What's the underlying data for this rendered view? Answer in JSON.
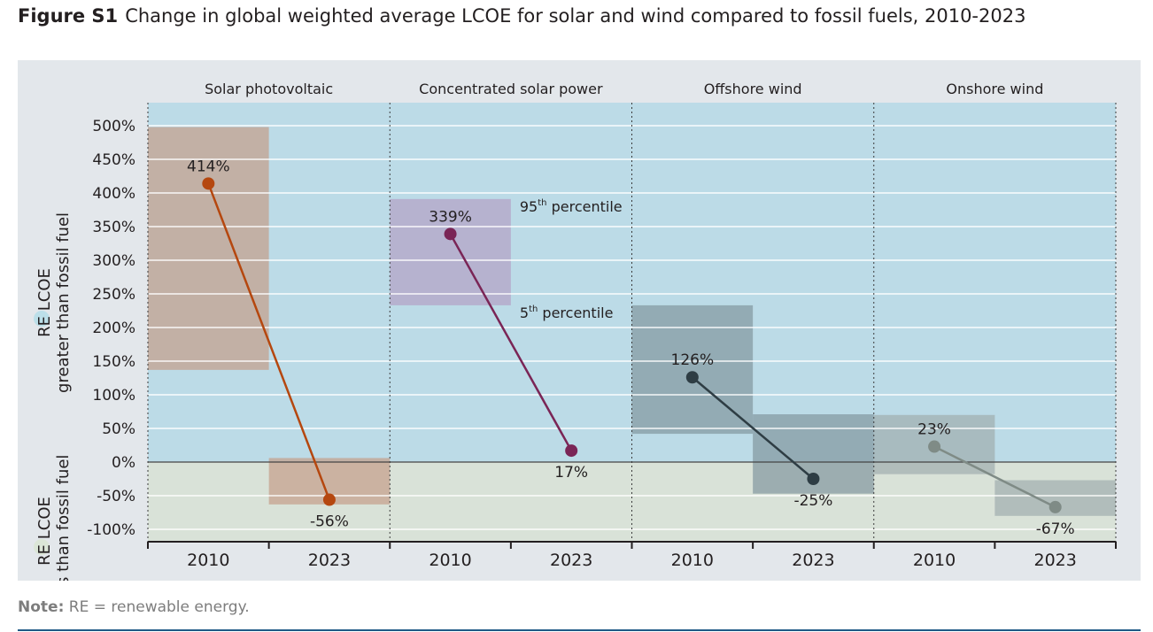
{
  "figure": {
    "label": "Figure S1",
    "title": "Change in global weighted average LCOE for solar and wind compared to fossil fuels, 2010-2023"
  },
  "note": {
    "label": "Note:",
    "text": "RE = renewable energy."
  },
  "colors": {
    "above_zone": "#bcdbe7",
    "below_zone": "#d9e2d8",
    "panel_bg": "#e3e7eb",
    "above_legend_dot": "#bcdfe9",
    "below_legend_dot": "#dbe6d7"
  },
  "chart_data": {
    "type": "line",
    "ylim": [
      -120,
      500
    ],
    "yticks": [
      500,
      450,
      400,
      350,
      300,
      250,
      200,
      150,
      100,
      50,
      0,
      -50,
      -100
    ],
    "ytick_labels": [
      "500%",
      "450%",
      "400%",
      "350%",
      "300%",
      "250%",
      "200%",
      "150%",
      "100%",
      "50%",
      "0%",
      "-50%",
      "-100%"
    ],
    "zone_labels": {
      "above": {
        "line1": "RE LCOE",
        "line2": "greater than fossil fuel"
      },
      "below": {
        "line1": "RE LCOE",
        "line2": "less than fossil fuel"
      }
    },
    "percentile_labels": {
      "p95_base": "95",
      "p95_sup": "th",
      "p95_word": " percentile",
      "p5_base": "5",
      "p5_sup": "th",
      "p5_word": " percentile"
    },
    "panels": [
      {
        "name": "Solar photovoltaic",
        "color": "#b5470f",
        "x": [
          "2010",
          "2023"
        ],
        "values": [
          414,
          -56
        ],
        "value_labels": [
          "414%",
          "-56%"
        ],
        "ranges": [
          [
            137,
            498
          ],
          [
            -63,
            6
          ]
        ],
        "range_color": "#c5a08c"
      },
      {
        "name": "Concentrated solar power",
        "color": "#7a2556",
        "x": [
          "2010",
          "2023"
        ],
        "values": [
          339,
          17
        ],
        "value_labels": [
          "339%",
          "17%"
        ],
        "ranges": [
          [
            233,
            391
          ],
          null
        ],
        "range_color": "#b4a2c6",
        "percentile_annotation": true
      },
      {
        "name": "Offshore wind",
        "color": "#2e3d44",
        "x": [
          "2010",
          "2023"
        ],
        "values": [
          126,
          -25
        ],
        "value_labels": [
          "126%",
          "-25%"
        ],
        "ranges": [
          [
            42,
            233
          ],
          [
            -47,
            71
          ]
        ],
        "range_color": "#8499a1"
      },
      {
        "name": "Onshore wind",
        "color": "#7f8b86",
        "x": [
          "2010",
          "2023"
        ],
        "values": [
          23,
          -67
        ],
        "value_labels": [
          "23%",
          "-67%"
        ],
        "ranges": [
          [
            -18,
            70
          ],
          [
            -80,
            -27
          ]
        ],
        "range_color": "#a1aeb0"
      }
    ]
  }
}
